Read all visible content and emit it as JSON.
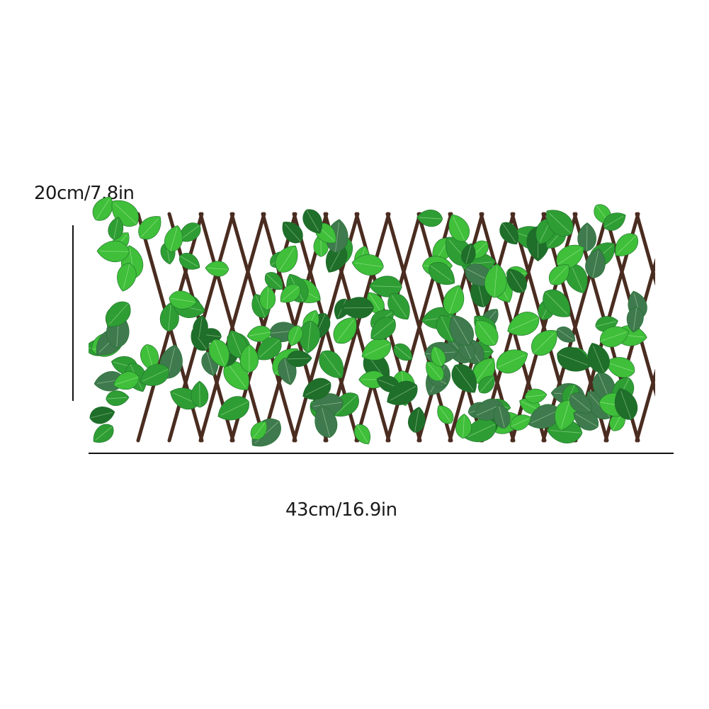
{
  "dimensions": {
    "height_label": "20cm/7.8in",
    "width_label": "43cm/16.9in"
  },
  "product": {
    "icon": "leaf-trellis-fence-image",
    "colors": {
      "leaf_light": "#3fbf3a",
      "leaf_mid": "#2e9e34",
      "leaf_dark": "#1f6e2a",
      "leaf_shade": "#3f7a4e",
      "wood": "#4a2c20"
    }
  }
}
